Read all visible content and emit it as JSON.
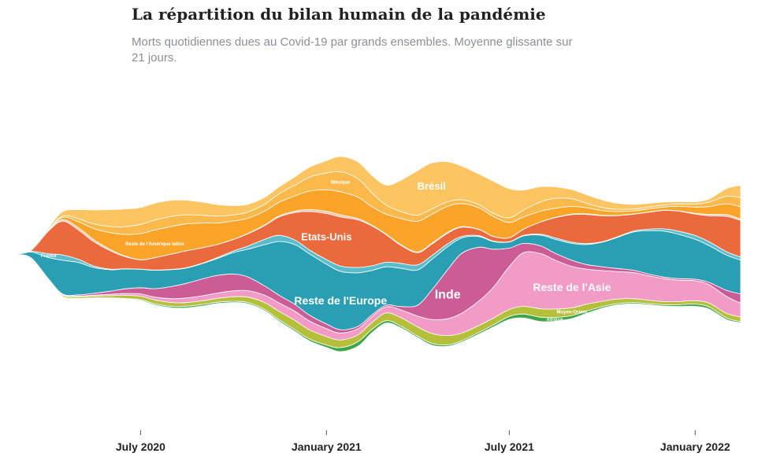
{
  "title": "La répartition du bilan humain de la pandémie",
  "subtitle": "Morts quotidiennes dues au Covid-19 par grands ensembles. Moyenne glissante sur 21 jours.",
  "chart_data": {
    "type": "area",
    "x_axis": {
      "ticks": [
        {
          "date": "2020-07-01",
          "label": "July 2020"
        },
        {
          "date": "2021-01-01",
          "label": "January 2021"
        },
        {
          "date": "2021-07-01",
          "label": "July 2021"
        },
        {
          "date": "2022-01-01",
          "label": "January 2022"
        }
      ],
      "range": [
        "2020-03-01",
        "2022-02-15"
      ]
    },
    "x": [
      "2020-03-01",
      "2020-03-15",
      "2020-04-01",
      "2020-04-15",
      "2020-05-01",
      "2020-05-15",
      "2020-06-01",
      "2020-06-15",
      "2020-07-01",
      "2020-07-15",
      "2020-08-01",
      "2020-08-15",
      "2020-09-01",
      "2020-09-15",
      "2020-10-01",
      "2020-10-15",
      "2020-11-01",
      "2020-11-15",
      "2020-12-01",
      "2020-12-15",
      "2021-01-01",
      "2021-01-15",
      "2021-02-01",
      "2021-02-15",
      "2021-03-01",
      "2021-03-15",
      "2021-04-01",
      "2021-04-15",
      "2021-05-01",
      "2021-05-15",
      "2021-06-01",
      "2021-06-15",
      "2021-07-01",
      "2021-07-15",
      "2021-08-01",
      "2021-08-15",
      "2021-09-01",
      "2021-09-15",
      "2021-10-01",
      "2021-10-15",
      "2021-11-01",
      "2021-11-15",
      "2021-12-01",
      "2021-12-15",
      "2022-01-01",
      "2022-01-15",
      "2022-02-01",
      "2022-02-15"
    ],
    "series": [
      {
        "name": "Afrique",
        "color": "#3fa64a",
        "values": [
          0,
          2,
          10,
          15,
          20,
          25,
          35,
          45,
          60,
          80,
          100,
          110,
          100,
          90,
          80,
          80,
          90,
          100,
          110,
          120,
          160,
          260,
          300,
          220,
          160,
          120,
          100,
          120,
          100,
          90,
          110,
          130,
          200,
          260,
          280,
          250,
          200,
          150,
          110,
          90,
          80,
          80,
          90,
          120,
          150,
          140,
          110,
          80
        ]
      },
      {
        "name": "Moyen-Orient",
        "color": "#b6bf3a",
        "values": [
          0,
          5,
          40,
          80,
          100,
          110,
          150,
          200,
          230,
          250,
          250,
          240,
          240,
          250,
          300,
          350,
          450,
          550,
          600,
          600,
          550,
          500,
          450,
          450,
          500,
          550,
          600,
          650,
          600,
          500,
          450,
          450,
          450,
          500,
          550,
          550,
          500,
          450,
          350,
          300,
          250,
          220,
          200,
          200,
          220,
          250,
          300,
          300
        ]
      },
      {
        "name": "Reste de l'Asie",
        "color": "#f29bc6",
        "values": [
          0,
          5,
          20,
          30,
          40,
          60,
          90,
          120,
          150,
          180,
          250,
          300,
          330,
          350,
          380,
          420,
          480,
          550,
          600,
          580,
          520,
          450,
          400,
          380,
          400,
          500,
          700,
          900,
          1100,
          1300,
          1600,
          2000,
          2800,
          3500,
          3600,
          3200,
          2700,
          2300,
          2000,
          1800,
          1700,
          1600,
          1500,
          1400,
          1300,
          1200,
          1100,
          900
        ]
      },
      {
        "name": "Inde",
        "color": "#cc5c95",
        "values": [
          0,
          2,
          20,
          40,
          80,
          120,
          200,
          300,
          400,
          550,
          800,
          950,
          1100,
          1150,
          1100,
          900,
          600,
          500,
          450,
          380,
          300,
          220,
          150,
          120,
          110,
          200,
          700,
          1900,
          3200,
          3900,
          3500,
          2500,
          1200,
          600,
          500,
          450,
          400,
          300,
          250,
          200,
          150,
          120,
          100,
          100,
          100,
          150,
          400,
          600
        ]
      },
      {
        "name": "Reste de l'Europe",
        "color": "#2a9fb3",
        "values": [
          20,
          400,
          1400,
          2200,
          2100,
          1700,
          1400,
          1300,
          1200,
          1200,
          1100,
          1000,
          1000,
          1100,
          1400,
          1800,
          2700,
          3500,
          3900,
          4000,
          3900,
          3800,
          3500,
          2900,
          2500,
          2500,
          2300,
          2000,
          1500,
          1000,
          700,
          500,
          400,
          500,
          700,
          900,
          1100,
          1300,
          1600,
          2000,
          2500,
          2800,
          3000,
          2900,
          2600,
          2400,
          2300,
          2200
        ]
      },
      {
        "name": "France",
        "color": "#5bbccc",
        "values": [
          0,
          50,
          250,
          350,
          200,
          100,
          40,
          20,
          15,
          15,
          15,
          20,
          30,
          60,
          100,
          200,
          350,
          400,
          300,
          250,
          300,
          350,
          350,
          300,
          300,
          320,
          330,
          250,
          180,
          100,
          50,
          30,
          20,
          25,
          60,
          100,
          80,
          60,
          30,
          40,
          60,
          100,
          150,
          200,
          250,
          250,
          220,
          200
        ]
      },
      {
        "name": "Etats-Unis",
        "color": "#eb6a3d",
        "values": [
          0,
          80,
          1500,
          2200,
          1900,
          1600,
          1200,
          800,
          600,
          800,
          1000,
          1100,
          1000,
          850,
          750,
          800,
          900,
          1200,
          1800,
          2500,
          3000,
          3200,
          3100,
          2600,
          1800,
          1200,
          800,
          750,
          700,
          600,
          400,
          300,
          250,
          400,
          800,
          1300,
          1800,
          1900,
          1700,
          1400,
          1100,
          1100,
          1200,
          1300,
          1400,
          1700,
          2300,
          2400
        ]
      },
      {
        "name": "Canada",
        "color": "#f5c3a6",
        "values": [
          0,
          5,
          40,
          100,
          150,
          140,
          80,
          40,
          15,
          10,
          5,
          5,
          5,
          5,
          10,
          20,
          40,
          60,
          90,
          130,
          150,
          140,
          90,
          50,
          35,
          40,
          45,
          50,
          50,
          40,
          20,
          10,
          5,
          5,
          5,
          15,
          30,
          40,
          30,
          20,
          15,
          15,
          15,
          20,
          50,
          100,
          120,
          80
        ]
      },
      {
        "name": "Reste de l'Amérique latine",
        "color": "#faa52a",
        "values": [
          0,
          5,
          40,
          150,
          400,
          700,
          1100,
          1400,
          1700,
          1800,
          1800,
          1750,
          1600,
          1400,
          1200,
          1000,
          900,
          900,
          1000,
          1200,
          1400,
          1500,
          1400,
          1200,
          1300,
          1700,
          2000,
          1900,
          1700,
          1500,
          1400,
          1300,
          1000,
          800,
          700,
          600,
          500,
          400,
          300,
          250,
          200,
          200,
          200,
          300,
          400,
          500,
          700,
          800
        ]
      },
      {
        "name": "Mexique",
        "color": "#fbb94c",
        "values": [
          0,
          2,
          20,
          80,
          200,
          300,
          400,
          500,
          600,
          650,
          650,
          600,
          500,
          450,
          400,
          400,
          450,
          550,
          700,
          900,
          1100,
          1300,
          1200,
          900,
          600,
          450,
          400,
          350,
          300,
          250,
          200,
          200,
          300,
          450,
          600,
          650,
          500,
          300,
          200,
          150,
          120,
          120,
          130,
          150,
          200,
          300,
          500,
          600
        ]
      },
      {
        "name": "Brésil",
        "color": "#fdc562",
        "values": [
          0,
          10,
          100,
          300,
          600,
          900,
          1100,
          1150,
          1100,
          1100,
          1050,
          950,
          850,
          750,
          600,
          500,
          450,
          450,
          550,
          650,
          800,
          1000,
          1100,
          1150,
          1300,
          2000,
          2900,
          3000,
          2600,
          2200,
          2000,
          2100,
          1900,
          1300,
          1000,
          750,
          600,
          550,
          500,
          400,
          300,
          250,
          200,
          150,
          150,
          200,
          500,
          800
        ]
      }
    ],
    "labels": [
      {
        "text": "Brésil",
        "size": "medium"
      },
      {
        "text": "Etats-Unis",
        "size": "medium"
      },
      {
        "text": "Reste de l'Europe",
        "size": "large"
      },
      {
        "text": "Inde",
        "size": "xlarge"
      },
      {
        "text": "Reste de l'Asie",
        "size": "large"
      },
      {
        "text": "Reste de l'Amérique latine",
        "size": "tiny"
      },
      {
        "text": "Mexique",
        "size": "tiny"
      },
      {
        "text": "France",
        "size": "tiny"
      },
      {
        "text": "Moyen-Orient",
        "size": "tiny"
      },
      {
        "text": "Afrique",
        "size": "tiny"
      }
    ],
    "grid": false,
    "legend": "none"
  }
}
